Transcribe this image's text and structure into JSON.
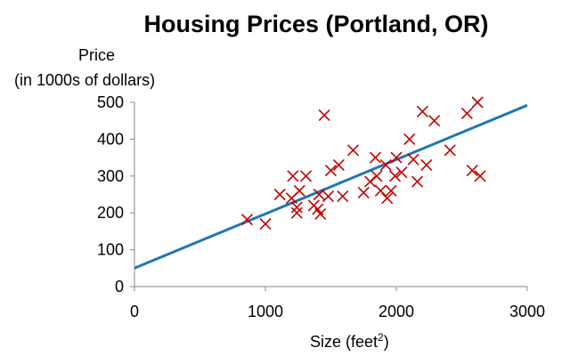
{
  "chart_data": {
    "type": "scatter",
    "title": "Housing Prices (Portland, OR)",
    "ylabel_line1": "Price",
    "ylabel_line2": "(in 1000s of dollars)",
    "xlabel_text": "Size (feet",
    "xlabel_sup": "2",
    "xlabel_close": ")",
    "xlim": [
      0,
      3000
    ],
    "ylim": [
      0,
      500
    ],
    "xticks": [
      0,
      1000,
      2000,
      3000
    ],
    "yticks": [
      0,
      100,
      200,
      300,
      400,
      500
    ],
    "xtick_labels": [
      "0",
      "1000",
      "2000",
      "3000"
    ],
    "ytick_labels": [
      "0",
      "100",
      "200",
      "300",
      "400",
      "500"
    ],
    "grid": false,
    "marker": "x",
    "marker_color": "#c00000",
    "line_color": "#1f77b4",
    "fit_line": {
      "x": [
        0,
        3000
      ],
      "y": [
        50,
        492
      ]
    },
    "points": [
      {
        "x": 860,
        "y": 182
      },
      {
        "x": 1000,
        "y": 170
      },
      {
        "x": 1110,
        "y": 250
      },
      {
        "x": 1200,
        "y": 240
      },
      {
        "x": 1210,
        "y": 300
      },
      {
        "x": 1240,
        "y": 215
      },
      {
        "x": 1240,
        "y": 200
      },
      {
        "x": 1260,
        "y": 260
      },
      {
        "x": 1310,
        "y": 300
      },
      {
        "x": 1370,
        "y": 220
      },
      {
        "x": 1400,
        "y": 210
      },
      {
        "x": 1410,
        "y": 250
      },
      {
        "x": 1420,
        "y": 197
      },
      {
        "x": 1450,
        "y": 465
      },
      {
        "x": 1480,
        "y": 245
      },
      {
        "x": 1500,
        "y": 315
      },
      {
        "x": 1560,
        "y": 330
      },
      {
        "x": 1590,
        "y": 245
      },
      {
        "x": 1670,
        "y": 370
      },
      {
        "x": 1750,
        "y": 255
      },
      {
        "x": 1800,
        "y": 285
      },
      {
        "x": 1840,
        "y": 350
      },
      {
        "x": 1850,
        "y": 300
      },
      {
        "x": 1880,
        "y": 260
      },
      {
        "x": 1920,
        "y": 330
      },
      {
        "x": 1930,
        "y": 240
      },
      {
        "x": 1960,
        "y": 260
      },
      {
        "x": 1990,
        "y": 300
      },
      {
        "x": 2000,
        "y": 350
      },
      {
        "x": 2040,
        "y": 310
      },
      {
        "x": 2100,
        "y": 400
      },
      {
        "x": 2130,
        "y": 345
      },
      {
        "x": 2160,
        "y": 285
      },
      {
        "x": 2200,
        "y": 475
      },
      {
        "x": 2230,
        "y": 330
      },
      {
        "x": 2290,
        "y": 450
      },
      {
        "x": 2410,
        "y": 370
      },
      {
        "x": 2540,
        "y": 470
      },
      {
        "x": 2580,
        "y": 315
      },
      {
        "x": 2620,
        "y": 500
      },
      {
        "x": 2640,
        "y": 300
      }
    ]
  }
}
